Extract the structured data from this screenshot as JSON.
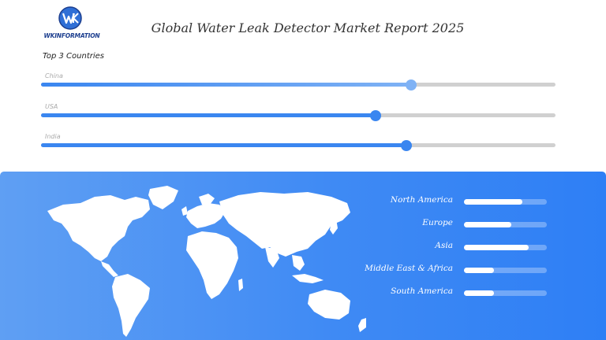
{
  "header": {
    "logo_text": "WKINFORMATION",
    "title": "Global Water Leak Detector Market Report 2025"
  },
  "countries_section": {
    "title": "Top 3 Countries"
  },
  "chart_data": [
    {
      "type": "bar",
      "title": "Top 3 Countries",
      "categories": [
        "China",
        "USA",
        "India"
      ],
      "values": [
        72,
        65,
        71
      ],
      "ylim": [
        0,
        100
      ],
      "colors": [
        "#7fb2f5",
        "#3a86f0",
        "#3a86f0"
      ],
      "track_color": "#d0d0d0"
    },
    {
      "type": "bar",
      "categories": [
        "North America",
        "Europe",
        "Asia",
        "Middle East & Africa",
        "South America"
      ],
      "values": [
        70,
        57,
        78,
        36,
        36
      ],
      "ylim": [
        0,
        100
      ],
      "bar_color": "#ffffff"
    }
  ],
  "colors": {
    "panel_start": "#5f9ff3",
    "panel_end": "#2e7ff5",
    "logo_blue": "#1d3f8f"
  }
}
